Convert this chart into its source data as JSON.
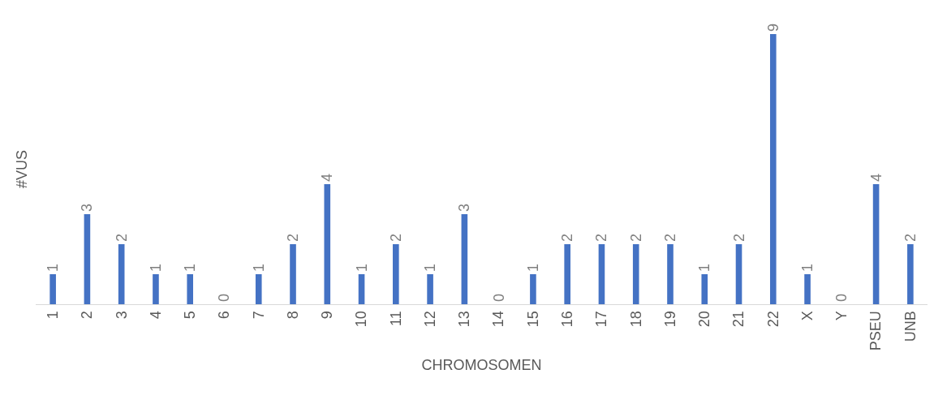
{
  "chart_data": {
    "type": "bar",
    "xlabel": "CHROMOSOMEN",
    "ylabel": "#VUS",
    "categories": [
      "1",
      "2",
      "3",
      "4",
      "5",
      "6",
      "7",
      "8",
      "9",
      "10",
      "11",
      "12",
      "13",
      "14",
      "15",
      "16",
      "17",
      "18",
      "19",
      "20",
      "21",
      "22",
      "X",
      "Y",
      "PSEU",
      "UNB"
    ],
    "values": [
      1,
      3,
      2,
      1,
      1,
      0,
      1,
      2,
      4,
      1,
      2,
      1,
      3,
      0,
      1,
      2,
      2,
      2,
      2,
      1,
      2,
      9,
      1,
      0,
      4,
      2
    ],
    "color": "#4472c4",
    "data_labels": true,
    "tick_labels": "x"
  }
}
